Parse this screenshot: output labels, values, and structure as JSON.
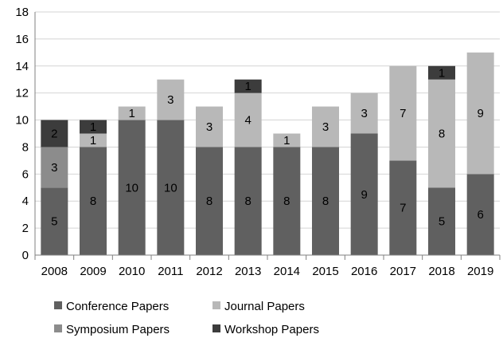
{
  "chart_data": {
    "type": "bar",
    "stacked": true,
    "categories": [
      "2008",
      "2009",
      "2010",
      "2011",
      "2012",
      "2013",
      "2014",
      "2015",
      "2016",
      "2017",
      "2018",
      "2019"
    ],
    "series": [
      {
        "name": "Conference Papers",
        "color": "#606060",
        "values": [
          5,
          8,
          10,
          10,
          8,
          8,
          8,
          8,
          9,
          7,
          5,
          6
        ]
      },
      {
        "name": "Symposium Papers",
        "color": "#8c8c8c",
        "values": [
          3,
          0,
          0,
          0,
          0,
          0,
          0,
          0,
          0,
          0,
          0,
          0
        ]
      },
      {
        "name": "Journal Papers",
        "color": "#b8b8b8",
        "values": [
          0,
          1,
          1,
          3,
          3,
          4,
          1,
          3,
          3,
          7,
          8,
          9
        ]
      },
      {
        "name": "Workshop Papers",
        "color": "#3c3c3c",
        "values": [
          2,
          1,
          0,
          0,
          0,
          1,
          0,
          0,
          0,
          0,
          1,
          0
        ]
      }
    ],
    "title": "",
    "xlabel": "",
    "ylabel": "",
    "ylim": [
      0,
      18
    ],
    "yticks": [
      0,
      2,
      4,
      6,
      8,
      10,
      12,
      14,
      16,
      18
    ],
    "grid": true,
    "legend_position": "bottom",
    "legend_order": [
      "Conference Papers",
      "Journal Papers",
      "Symposium Papers",
      "Workshop Papers"
    ]
  }
}
